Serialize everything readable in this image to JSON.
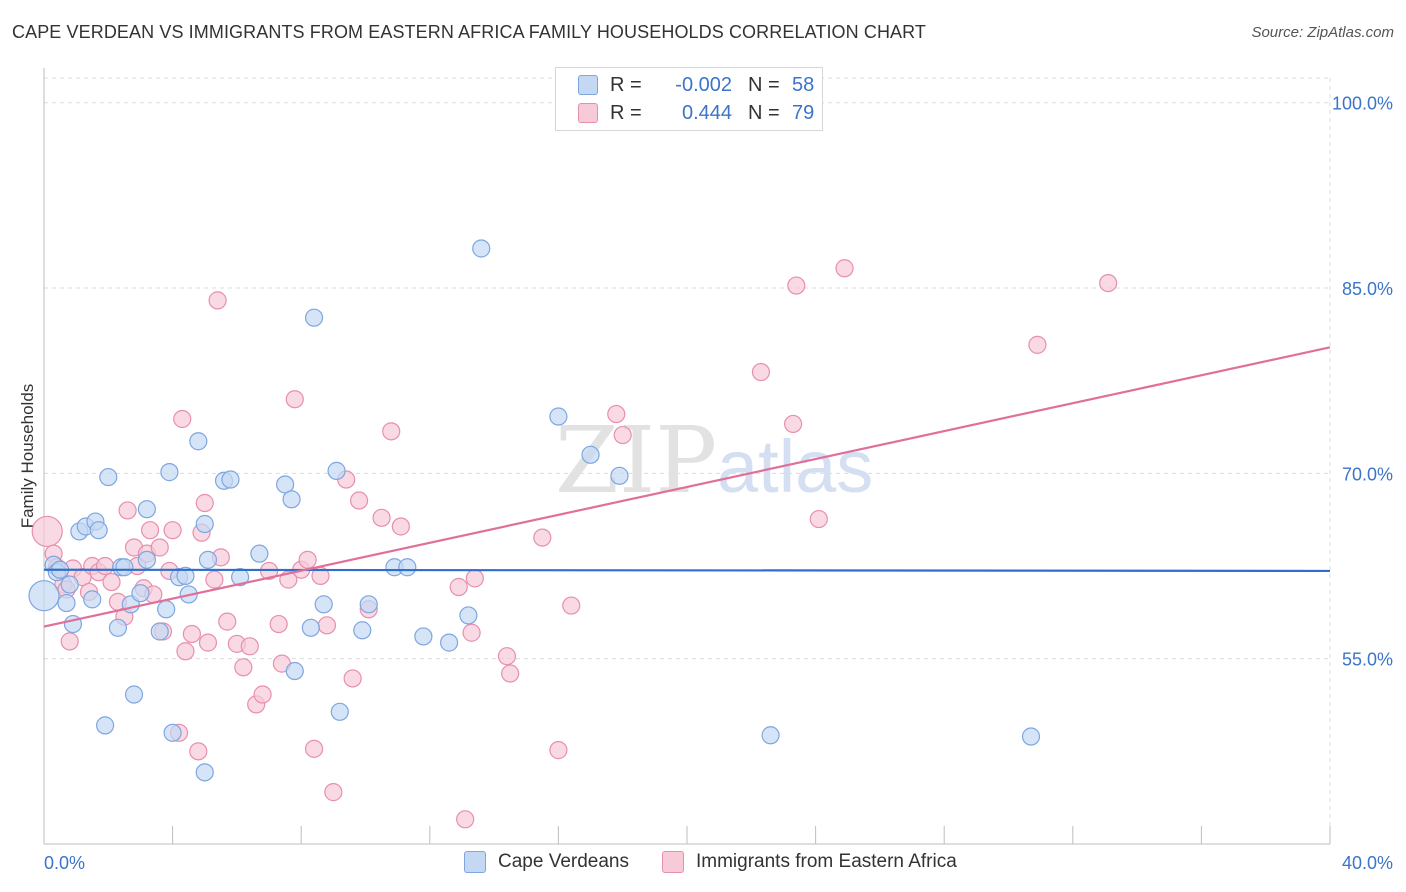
{
  "header": {
    "title": "CAPE VERDEAN VS IMMIGRANTS FROM EASTERN AFRICA FAMILY HOUSEHOLDS CORRELATION CHART",
    "source": "Source: ZipAtlas.com"
  },
  "watermark": {
    "zip": "ZIP",
    "atlas": "atlas"
  },
  "legend_top": [
    {
      "r_label": "R =",
      "r_value": "-0.002",
      "n_label": "N =",
      "n_value": "58"
    },
    {
      "r_label": "R =",
      "r_value": " 0.444",
      "n_label": "N =",
      "n_value": "79"
    }
  ],
  "legend_bottom": [
    {
      "label": "Cape Verdeans"
    },
    {
      "label": "Immigrants from Eastern Africa"
    }
  ],
  "colors": {
    "blue_fill": "#c5d8f3",
    "blue_stroke": "#7ea6df",
    "blue_line": "#2f6fca",
    "pink_fill": "#f7cad8",
    "pink_stroke": "#e88fab",
    "pink_line": "#e0709a",
    "tick_label": "#3b74c9",
    "grid": "#dcdcdc"
  },
  "chart_data": {
    "type": "scatter",
    "title": "CAPE VERDEAN VS IMMIGRANTS FROM EASTERN AFRICA FAMILY HOUSEHOLDS CORRELATION CHART",
    "xlabel": "",
    "ylabel": "Family Households",
    "xlim": [
      0,
      40
    ],
    "ylim": [
      40,
      102
    ],
    "x_tick_labels": [
      {
        "value": 0,
        "label": "0.0%"
      },
      {
        "value": 40,
        "label": "40.0%"
      }
    ],
    "y_tick_labels": [
      {
        "value": 55,
        "label": "55.0%"
      },
      {
        "value": 70,
        "label": "70.0%"
      },
      {
        "value": 85,
        "label": "85.0%"
      },
      {
        "value": 100,
        "label": "100.0%"
      }
    ],
    "grid": true,
    "legend_position": "top-center",
    "series": [
      {
        "name": "Cape Verdeans",
        "color": "blue",
        "trend": {
          "x": [
            0,
            40
          ],
          "y": [
            62.2,
            62.1
          ]
        },
        "points": [
          [
            0.0,
            60.1
          ],
          [
            0.3,
            62.6
          ],
          [
            0.4,
            62.0
          ],
          [
            0.5,
            62.2
          ],
          [
            0.7,
            59.5
          ],
          [
            0.8,
            61.0
          ],
          [
            0.9,
            57.8
          ],
          [
            1.1,
            65.3
          ],
          [
            1.3,
            65.7
          ],
          [
            1.5,
            59.8
          ],
          [
            1.6,
            66.1
          ],
          [
            1.7,
            65.4
          ],
          [
            1.9,
            49.6
          ],
          [
            2.0,
            69.7
          ],
          [
            2.3,
            57.5
          ],
          [
            2.4,
            62.4
          ],
          [
            2.5,
            62.4
          ],
          [
            2.7,
            59.4
          ],
          [
            2.8,
            52.1
          ],
          [
            3.0,
            60.3
          ],
          [
            3.2,
            63.0
          ],
          [
            3.2,
            67.1
          ],
          [
            3.6,
            57.2
          ],
          [
            3.8,
            59.0
          ],
          [
            3.9,
            70.1
          ],
          [
            4.0,
            49.0
          ],
          [
            4.2,
            61.6
          ],
          [
            4.4,
            61.7
          ],
          [
            4.5,
            60.2
          ],
          [
            4.8,
            72.6
          ],
          [
            5.0,
            65.9
          ],
          [
            5.1,
            63.0
          ],
          [
            5.0,
            45.8
          ],
          [
            5.6,
            69.4
          ],
          [
            5.8,
            69.5
          ],
          [
            6.1,
            61.6
          ],
          [
            6.7,
            63.5
          ],
          [
            7.5,
            69.1
          ],
          [
            7.7,
            67.9
          ],
          [
            7.8,
            54.0
          ],
          [
            8.3,
            57.5
          ],
          [
            8.4,
            82.6
          ],
          [
            8.7,
            59.4
          ],
          [
            9.1,
            70.2
          ],
          [
            9.2,
            50.7
          ],
          [
            9.9,
            57.3
          ],
          [
            10.1,
            59.4
          ],
          [
            10.9,
            62.4
          ],
          [
            11.3,
            62.4
          ],
          [
            11.8,
            56.8
          ],
          [
            12.6,
            56.3
          ],
          [
            13.2,
            58.5
          ],
          [
            13.6,
            88.2
          ],
          [
            16.0,
            74.6
          ],
          [
            17.0,
            71.5
          ],
          [
            17.9,
            69.8
          ],
          [
            22.6,
            48.8
          ],
          [
            30.7,
            48.7
          ]
        ]
      },
      {
        "name": "Immigrants from Eastern Africa",
        "color": "pink",
        "trend": {
          "x": [
            0,
            40
          ],
          "y": [
            57.6,
            80.2
          ]
        },
        "points": [
          [
            0.1,
            65.3
          ],
          [
            0.3,
            63.5
          ],
          [
            0.4,
            62.4
          ],
          [
            0.6,
            61.0
          ],
          [
            0.7,
            60.6
          ],
          [
            0.8,
            56.4
          ],
          [
            0.9,
            62.3
          ],
          [
            1.2,
            61.6
          ],
          [
            1.4,
            60.4
          ],
          [
            1.5,
            62.5
          ],
          [
            1.7,
            62.0
          ],
          [
            1.9,
            62.5
          ],
          [
            2.1,
            61.2
          ],
          [
            2.3,
            59.6
          ],
          [
            2.5,
            58.4
          ],
          [
            2.6,
            67.0
          ],
          [
            2.8,
            64.0
          ],
          [
            2.9,
            62.5
          ],
          [
            3.1,
            60.7
          ],
          [
            3.2,
            63.5
          ],
          [
            3.3,
            65.4
          ],
          [
            3.4,
            60.2
          ],
          [
            3.6,
            64.0
          ],
          [
            3.7,
            57.2
          ],
          [
            3.9,
            62.1
          ],
          [
            4.0,
            65.4
          ],
          [
            4.2,
            49.0
          ],
          [
            4.3,
            74.4
          ],
          [
            4.4,
            55.6
          ],
          [
            4.6,
            57.0
          ],
          [
            4.8,
            47.5
          ],
          [
            4.9,
            65.2
          ],
          [
            5.0,
            67.6
          ],
          [
            5.1,
            56.3
          ],
          [
            5.3,
            61.4
          ],
          [
            5.4,
            84.0
          ],
          [
            5.5,
            63.2
          ],
          [
            5.7,
            58.0
          ],
          [
            6.0,
            56.2
          ],
          [
            6.2,
            54.3
          ],
          [
            6.4,
            56.0
          ],
          [
            6.6,
            51.3
          ],
          [
            6.8,
            52.1
          ],
          [
            7.0,
            62.1
          ],
          [
            7.3,
            57.8
          ],
          [
            7.4,
            54.6
          ],
          [
            7.6,
            61.4
          ],
          [
            7.8,
            76.0
          ],
          [
            8.0,
            62.2
          ],
          [
            8.2,
            63.0
          ],
          [
            8.4,
            47.7
          ],
          [
            8.6,
            61.7
          ],
          [
            8.8,
            57.7
          ],
          [
            9.0,
            44.2
          ],
          [
            9.4,
            69.5
          ],
          [
            9.6,
            53.4
          ],
          [
            9.8,
            67.8
          ],
          [
            10.1,
            59.0
          ],
          [
            10.5,
            66.4
          ],
          [
            10.8,
            73.4
          ],
          [
            11.1,
            65.7
          ],
          [
            12.9,
            60.8
          ],
          [
            13.1,
            42.0
          ],
          [
            13.3,
            57.1
          ],
          [
            13.4,
            61.5
          ],
          [
            14.4,
            55.2
          ],
          [
            14.5,
            53.8
          ],
          [
            15.5,
            64.8
          ],
          [
            16.0,
            47.6
          ],
          [
            16.4,
            59.3
          ],
          [
            17.8,
            74.8
          ],
          [
            18.0,
            73.1
          ],
          [
            22.3,
            78.2
          ],
          [
            23.3,
            74.0
          ],
          [
            23.4,
            85.2
          ],
          [
            24.1,
            66.3
          ],
          [
            24.9,
            86.6
          ],
          [
            30.9,
            80.4
          ],
          [
            33.1,
            85.4
          ]
        ]
      }
    ]
  }
}
